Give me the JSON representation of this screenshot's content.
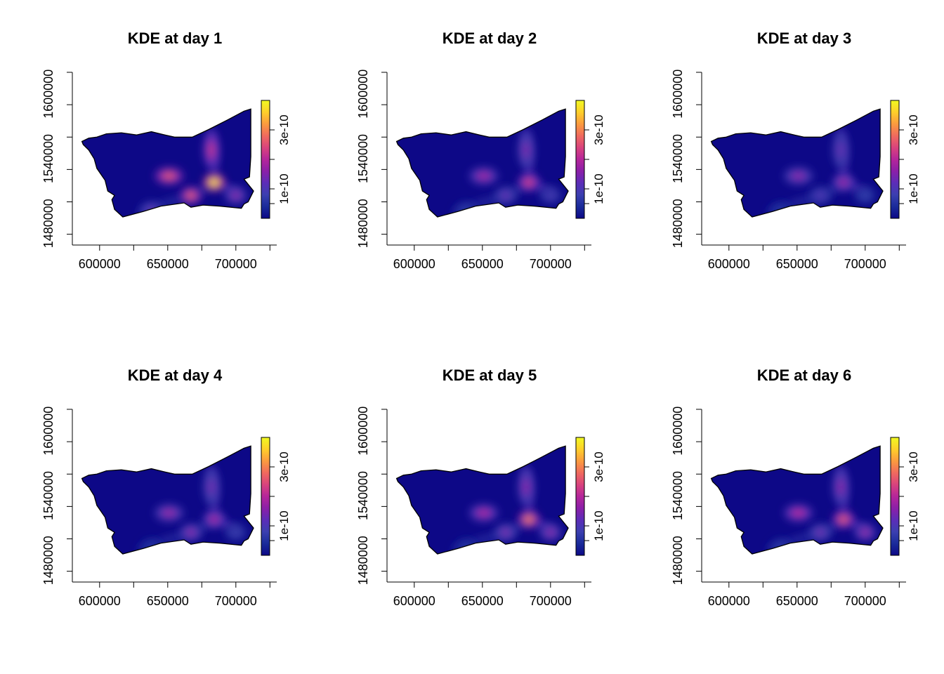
{
  "colors": {
    "background": "#ffffff",
    "axis": "#000000",
    "palette": [
      "#0d0887",
      "#1a2b9a",
      "#3b3fb0",
      "#5c2db8",
      "#8b1fa8",
      "#b5269a",
      "#d9437d",
      "#f06a5e",
      "#fb9b3f",
      "#fecf2a",
      "#f0f921"
    ]
  },
  "chart_data": [
    {
      "type": "heatmap",
      "title": "KDE at day 1",
      "x_ticks": [
        "600000",
        "650000",
        "700000"
      ],
      "y_ticks": [
        "1480000",
        "1540000",
        "1600000"
      ],
      "xlim": [
        580000,
        730000
      ],
      "ylim": [
        1460000,
        1620000
      ],
      "colorbar": {
        "ticks": [
          "1e-10",
          "3e-10"
        ],
        "range": [
          0,
          4e-10
        ]
      },
      "hotspots": [
        {
          "x": 684000,
          "y": 1518000,
          "value": 3.9e-10
        },
        {
          "x": 682000,
          "y": 1548000,
          "value": 2.2e-10
        },
        {
          "x": 651000,
          "y": 1524000,
          "value": 2.6e-10
        },
        {
          "x": 667000,
          "y": 1506000,
          "value": 2.7e-10
        },
        {
          "x": 700000,
          "y": 1506000,
          "value": 1.6e-10
        },
        {
          "x": 638000,
          "y": 1492000,
          "value": 1.3e-10
        }
      ]
    },
    {
      "type": "heatmap",
      "title": "KDE at day 2",
      "x_ticks": [
        "600000",
        "650000",
        "700000"
      ],
      "y_ticks": [
        "1480000",
        "1540000",
        "1600000"
      ],
      "xlim": [
        580000,
        730000
      ],
      "ylim": [
        1460000,
        1620000
      ],
      "colorbar": {
        "ticks": [
          "1e-10",
          "3e-10"
        ],
        "range": [
          0,
          4e-10
        ]
      },
      "hotspots": [
        {
          "x": 684000,
          "y": 1518000,
          "value": 2.4e-10
        },
        {
          "x": 682000,
          "y": 1548000,
          "value": 1.5e-10
        },
        {
          "x": 651000,
          "y": 1524000,
          "value": 1.8e-10
        },
        {
          "x": 667000,
          "y": 1506000,
          "value": 1.3e-10
        },
        {
          "x": 700000,
          "y": 1506000,
          "value": 1e-10
        },
        {
          "x": 638000,
          "y": 1492000,
          "value": 7e-11
        }
      ]
    },
    {
      "type": "heatmap",
      "title": "KDE at day 3",
      "x_ticks": [
        "600000",
        "650000",
        "700000"
      ],
      "y_ticks": [
        "1480000",
        "1540000",
        "1600000"
      ],
      "xlim": [
        580000,
        730000
      ],
      "ylim": [
        1460000,
        1620000
      ],
      "colorbar": {
        "ticks": [
          "1e-10",
          "3e-10"
        ],
        "range": [
          0,
          4e-10
        ]
      },
      "hotspots": [
        {
          "x": 684000,
          "y": 1518000,
          "value": 1.8e-10
        },
        {
          "x": 682000,
          "y": 1548000,
          "value": 1.3e-10
        },
        {
          "x": 651000,
          "y": 1524000,
          "value": 1.6e-10
        },
        {
          "x": 667000,
          "y": 1506000,
          "value": 1.1e-10
        },
        {
          "x": 700000,
          "y": 1506000,
          "value": 8e-11
        },
        {
          "x": 638000,
          "y": 1492000,
          "value": 6e-11
        }
      ]
    },
    {
      "type": "heatmap",
      "title": "KDE at day 4",
      "x_ticks": [
        "600000",
        "650000",
        "700000"
      ],
      "y_ticks": [
        "1480000",
        "1540000",
        "1600000"
      ],
      "xlim": [
        580000,
        730000
      ],
      "ylim": [
        1460000,
        1620000
      ],
      "colorbar": {
        "ticks": [
          "1e-10",
          "3e-10"
        ],
        "range": [
          0,
          4e-10
        ]
      },
      "hotspots": [
        {
          "x": 684000,
          "y": 1518000,
          "value": 1.9e-10
        },
        {
          "x": 682000,
          "y": 1548000,
          "value": 1.4e-10
        },
        {
          "x": 651000,
          "y": 1524000,
          "value": 1.7e-10
        },
        {
          "x": 667000,
          "y": 1506000,
          "value": 1.6e-10
        },
        {
          "x": 700000,
          "y": 1506000,
          "value": 9e-11
        },
        {
          "x": 638000,
          "y": 1492000,
          "value": 6e-11
        }
      ]
    },
    {
      "type": "heatmap",
      "title": "KDE at day 5",
      "x_ticks": [
        "600000",
        "650000",
        "700000"
      ],
      "y_ticks": [
        "1480000",
        "1540000",
        "1600000"
      ],
      "xlim": [
        580000,
        730000
      ],
      "ylim": [
        1460000,
        1620000
      ],
      "colorbar": {
        "ticks": [
          "1e-10",
          "3e-10"
        ],
        "range": [
          0,
          4e-10
        ]
      },
      "hotspots": [
        {
          "x": 684000,
          "y": 1518000,
          "value": 3e-10
        },
        {
          "x": 682000,
          "y": 1548000,
          "value": 1.6e-10
        },
        {
          "x": 651000,
          "y": 1524000,
          "value": 1.9e-10
        },
        {
          "x": 667000,
          "y": 1506000,
          "value": 1.5e-10
        },
        {
          "x": 700000,
          "y": 1506000,
          "value": 1.6e-10
        },
        {
          "x": 638000,
          "y": 1492000,
          "value": 6e-11
        }
      ]
    },
    {
      "type": "heatmap",
      "title": "KDE at day 6",
      "x_ticks": [
        "600000",
        "650000",
        "700000"
      ],
      "y_ticks": [
        "1480000",
        "1540000",
        "1600000"
      ],
      "xlim": [
        580000,
        730000
      ],
      "ylim": [
        1460000,
        1620000
      ],
      "colorbar": {
        "ticks": [
          "1e-10",
          "3e-10"
        ],
        "range": [
          0,
          4e-10
        ]
      },
      "hotspots": [
        {
          "x": 684000,
          "y": 1518000,
          "value": 2.7e-10
        },
        {
          "x": 682000,
          "y": 1548000,
          "value": 1.6e-10
        },
        {
          "x": 651000,
          "y": 1524000,
          "value": 2e-10
        },
        {
          "x": 667000,
          "y": 1506000,
          "value": 1.4e-10
        },
        {
          "x": 700000,
          "y": 1506000,
          "value": 1.7e-10
        },
        {
          "x": 638000,
          "y": 1492000,
          "value": 7e-11
        }
      ]
    }
  ]
}
